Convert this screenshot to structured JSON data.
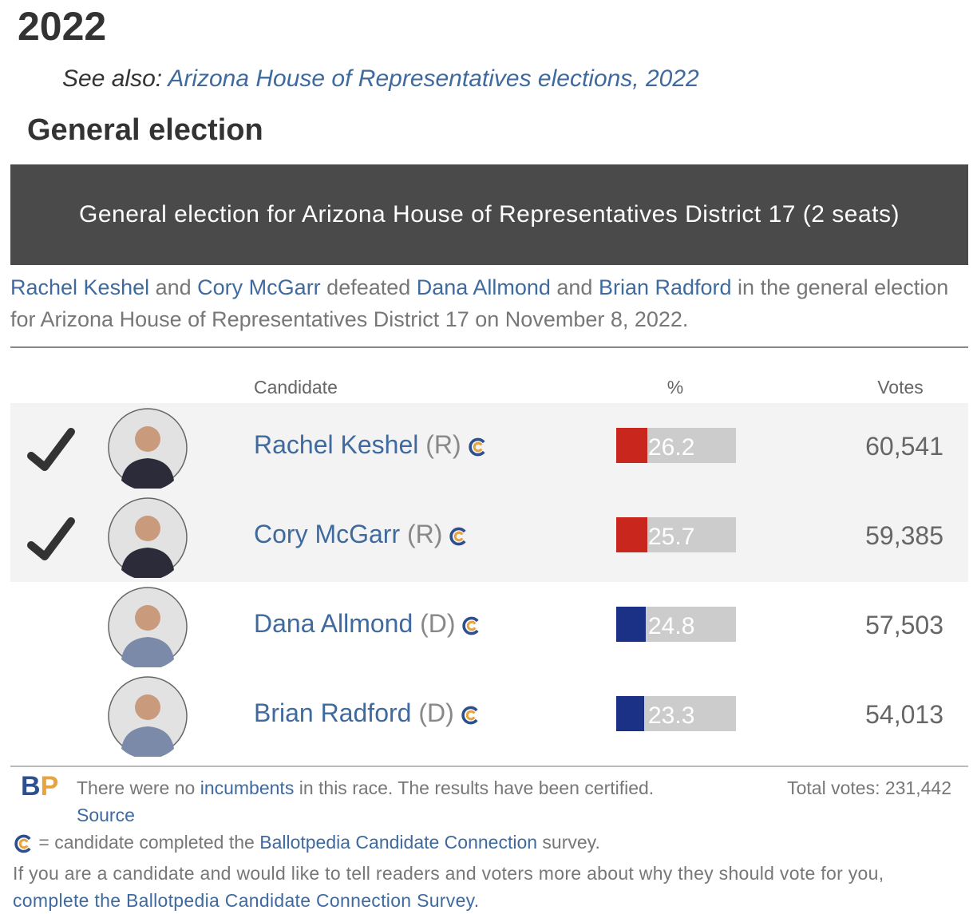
{
  "heading": "2022",
  "see_also": {
    "label": "See also:",
    "link": "Arizona House of Representatives elections, 2022"
  },
  "section_title": "General election",
  "race": {
    "title": "General election for Arizona House of Representatives District 17 (2 seats)",
    "summary": [
      {
        "text": "Rachel Keshel",
        "link": true
      },
      {
        "text": " and ",
        "link": false
      },
      {
        "text": "Cory McGarr",
        "link": true
      },
      {
        "text": " defeated ",
        "link": false
      },
      {
        "text": "Dana Allmond",
        "link": true
      },
      {
        "text": " and ",
        "link": false
      },
      {
        "text": "Brian Radford",
        "link": true
      },
      {
        "text": " in the general election for Arizona House of Representatives District 17 on November 8, 2022.",
        "link": false
      }
    ],
    "columns": [
      "Candidate",
      "%",
      "Votes"
    ],
    "candidates": [
      {
        "name": "Rachel Keshel",
        "party": "(R)",
        "percent": 26.2,
        "votes": "60,541",
        "winner": true,
        "color": "#c9271d"
      },
      {
        "name": "Cory McGarr",
        "party": "(R)",
        "percent": 25.7,
        "votes": "59,385",
        "winner": true,
        "color": "#c9271d"
      },
      {
        "name": "Dana Allmond",
        "party": "(D)",
        "percent": 24.8,
        "votes": "57,503",
        "winner": false,
        "color": "#1a3185"
      },
      {
        "name": "Brian Radford",
        "party": "(D)",
        "percent": 23.3,
        "votes": "54,013",
        "winner": false,
        "color": "#1a3185"
      }
    ],
    "logo": [
      "B",
      "P"
    ],
    "notes": [
      {
        "text": "There were no ",
        "link": false
      },
      {
        "text": "incumbents",
        "link": true
      },
      {
        "text": " in this race. The results have been certified. ",
        "link": false
      },
      {
        "text": "Source",
        "link": true
      }
    ],
    "total_votes": "Total votes: 231,442",
    "legend": [
      {
        "text": " = candidate completed the ",
        "link": false
      },
      {
        "text": "Ballotpedia Candidate Connection",
        "link": true
      },
      {
        "text": " survey.",
        "link": false
      }
    ],
    "invite": [
      {
        "text": "If you are a candidate and would like to tell readers and voters more about why they should vote for you, ",
        "link": false
      },
      {
        "text": "complete the Ballotpedia Candidate Connection Survey.",
        "link": true
      }
    ]
  }
}
